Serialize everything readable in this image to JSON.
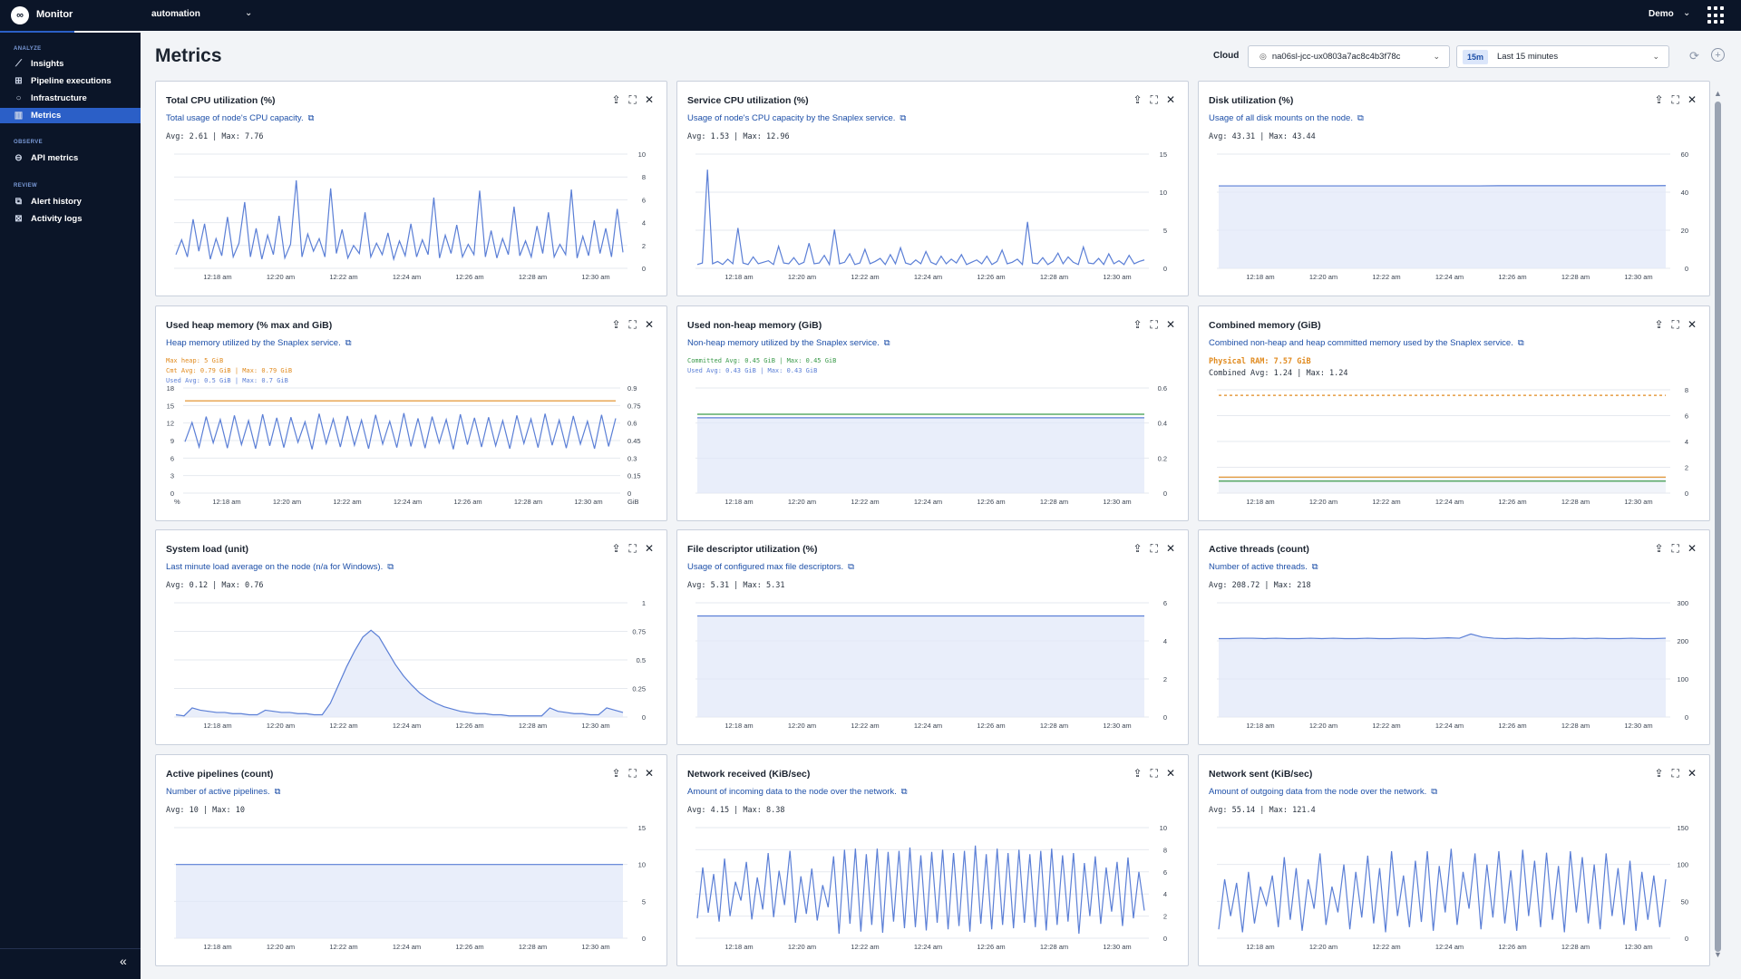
{
  "app": {
    "title": "Monitor",
    "org": "automation",
    "user": "Demo"
  },
  "sidebar": {
    "sections": [
      {
        "label": "ANALYZE",
        "items": [
          {
            "label": "Insights",
            "icon": "insights-icon"
          },
          {
            "label": "Pipeline executions",
            "icon": "pipeline-icon"
          },
          {
            "label": "Infrastructure",
            "icon": "infrastructure-icon"
          },
          {
            "label": "Metrics",
            "icon": "metrics-icon",
            "active": true
          }
        ]
      },
      {
        "label": "OBSERVE",
        "items": [
          {
            "label": "API metrics",
            "icon": "api-icon"
          }
        ]
      },
      {
        "label": "REVIEW",
        "items": [
          {
            "label": "Alert history",
            "icon": "alert-icon"
          },
          {
            "label": "Activity logs",
            "icon": "activity-icon"
          }
        ]
      }
    ]
  },
  "header": {
    "title": "Metrics",
    "cloud_label": "Cloud",
    "cloud_value": "na06sl-jcc-ux0803a7ac8c4b3f78c",
    "time_badge": "15m",
    "time_value": "Last 15 minutes"
  },
  "colors": {
    "accent": "#2b5fc7",
    "line": "#5b7fd6",
    "orange": "#e08a1e",
    "green": "#3a9a4a",
    "sidebar_bg": "#0b1528"
  },
  "x_ticks": [
    "12:18 am",
    "12:20 am",
    "12:22 am",
    "12:24 am",
    "12:26 am",
    "12:28 am",
    "12:30 am"
  ],
  "cards": [
    {
      "title": "Total CPU utilization (%)",
      "subtitle": "Total usage of node's CPU capacity.",
      "stats": [
        "Avg: 2.61 | Max: 7.76"
      ]
    },
    {
      "title": "Service CPU utilization (%)",
      "subtitle": "Usage of node's CPU capacity by the Snaplex service.",
      "stats": [
        "Avg: 1.53 | Max: 12.96"
      ]
    },
    {
      "title": "Disk utilization (%)",
      "subtitle": "Usage of all disk mounts on the node.",
      "stats": [
        "Avg: 43.31 | Max: 43.44"
      ]
    },
    {
      "title": "Used heap memory (% max and GiB)",
      "subtitle": "Heap memory utilized by the Snaplex service.",
      "stats": [
        "Max heap: 5 GiB",
        "Cmt Avg: 0.79 GiB | Max: 0.79 GiB",
        "Used Avg: 0.5 GiB | Max: 0.7 GiB"
      ]
    },
    {
      "title": "Used non-heap memory (GiB)",
      "subtitle": "Non-heap memory utilized by the Snaplex service.",
      "stats": [
        "Committed Avg: 0.45 GiB | Max: 0.45 GiB",
        "Used Avg: 0.43 GiB | Max: 0.43 GiB"
      ]
    },
    {
      "title": "Combined memory (GiB)",
      "subtitle": "Combined non-heap and heap committed memory used by the Snaplex service.",
      "stats": [
        "Physical RAM: 7.57 GiB",
        "Combined Avg: 1.24 | Max: 1.24"
      ]
    },
    {
      "title": "System load (unit)",
      "subtitle": "Last minute load average on the node (n/a for Windows).",
      "stats": [
        "Avg: 0.12 | Max: 0.76"
      ]
    },
    {
      "title": "File descriptor utilization (%)",
      "subtitle": "Usage of configured max file descriptors.",
      "stats": [
        "Avg: 5.31 | Max: 5.31"
      ]
    },
    {
      "title": "Active threads (count)",
      "subtitle": "Number of active threads.",
      "stats": [
        "Avg: 208.72 | Max: 218"
      ]
    },
    {
      "title": "Active pipelines (count)",
      "subtitle": "Number of active pipelines.",
      "stats": [
        "Avg: 10 | Max: 10"
      ]
    },
    {
      "title": "Network received (KiB/sec)",
      "subtitle": "Amount of incoming data to the node over the network.",
      "stats": [
        "Avg: 4.15 | Max: 8.38"
      ]
    },
    {
      "title": "Network sent (KiB/sec)",
      "subtitle": "Amount of outgoing data from the node over the network.",
      "stats": [
        "Avg: 55.14 | Max: 121.4"
      ]
    }
  ],
  "chart_data": [
    {
      "type": "line",
      "title": "Total CPU utilization (%)",
      "ylim": [
        0,
        10
      ],
      "yticks": [
        0,
        2,
        4,
        6,
        8,
        10
      ],
      "series": [
        {
          "values": [
            1.2,
            2.5,
            1.0,
            4.3,
            1.5,
            3.9,
            0.8,
            2.6,
            1.1,
            4.5,
            1.0,
            2.2,
            5.8,
            1.0,
            3.5,
            0.8,
            2.9,
            1.2,
            4.6,
            0.9,
            2.1,
            7.7,
            1.0,
            3.0,
            1.5,
            2.6,
            1.0,
            7.0,
            1.3,
            3.4,
            0.9,
            2.0,
            1.3,
            4.9,
            1.0,
            2.2,
            1.2,
            3.1,
            0.8,
            2.4,
            1.1,
            3.9,
            1.0,
            2.5,
            1.2,
            6.2,
            0.9,
            2.9,
            1.3,
            3.8,
            1.0,
            2.1,
            1.2,
            6.8,
            1.0,
            3.3,
            0.9,
            2.6,
            1.2,
            5.4,
            1.1,
            2.4,
            1.0,
            3.7,
            1.3,
            4.9,
            1.0,
            2.1,
            1.2,
            6.9,
            0.9,
            2.8,
            1.1,
            4.2,
            1.3,
            3.5,
            1.0,
            5.2,
            1.4
          ]
        }
      ]
    },
    {
      "type": "line",
      "title": "Service CPU utilization (%)",
      "ylim": [
        0,
        15
      ],
      "yticks": [
        0,
        5,
        10,
        15
      ],
      "series": [
        {
          "values": [
            0.5,
            0.7,
            12.96,
            0.6,
            0.9,
            0.5,
            1.2,
            0.6,
            5.3,
            0.7,
            0.5,
            1.5,
            0.6,
            0.8,
            1.0,
            0.5,
            2.9,
            0.7,
            0.6,
            1.4,
            0.5,
            0.8,
            3.3,
            0.6,
            0.7,
            1.7,
            0.5,
            5.1,
            0.6,
            0.8,
            1.9,
            0.5,
            0.7,
            2.5,
            0.6,
            0.9,
            1.3,
            0.5,
            1.8,
            0.6,
            2.7,
            0.7,
            0.5,
            1.1,
            0.6,
            2.2,
            0.8,
            0.5,
            1.6,
            0.6,
            1.2,
            0.7,
            1.8,
            0.5,
            0.8,
            1.1,
            0.6,
            1.6,
            0.5,
            0.9,
            2.4,
            0.6,
            0.8,
            1.2,
            0.5,
            6.1,
            0.7,
            0.6,
            1.4,
            0.5,
            0.9,
            2.0,
            0.6,
            1.5,
            0.8,
            0.5,
            2.8,
            0.7,
            0.6,
            1.3,
            0.5,
            1.9,
            0.6,
            1.0,
            0.5,
            1.7,
            0.6,
            0.9,
            1.1
          ]
        }
      ]
    },
    {
      "type": "area",
      "title": "Disk utilization (%)",
      "ylim": [
        0,
        60
      ],
      "yticks": [
        0,
        20,
        40,
        60
      ],
      "series": [
        {
          "values": [
            43.3,
            43.3,
            43.3,
            43.3,
            43.3,
            43.3,
            43.3,
            43.3,
            43.3,
            43.3,
            43.3,
            43.3,
            43.3,
            43.3,
            43.3,
            43.4,
            43.4,
            43.4,
            43.4,
            43.4,
            43.4,
            43.4,
            43.4,
            43.4,
            43.44
          ]
        }
      ]
    },
    {
      "type": "line",
      "title": "Used heap memory (% max and GiB)",
      "ylim": [
        0,
        18
      ],
      "yticks": [
        0,
        3,
        6,
        9,
        12,
        15,
        18
      ],
      "ylim_right": [
        0,
        0.9
      ],
      "yticks_right": [
        0,
        0.15,
        0.3,
        0.45,
        0.6,
        0.75,
        0.9
      ],
      "xunit": "%",
      "yunit_right": "GiB",
      "series": [
        {
          "name": "Cmt",
          "values": [
            15.8,
            15.8
          ]
        },
        {
          "name": "Used",
          "values": [
            8.8,
            12.1,
            7.9,
            13.1,
            8.6,
            12.6,
            7.7,
            13.3,
            8.3,
            12.4,
            7.6,
            13.5,
            8.1,
            12.9,
            7.8,
            13.0,
            8.7,
            12.2,
            7.5,
            13.6,
            8.5,
            12.7,
            7.9,
            13.2,
            8.2,
            12.5,
            7.6,
            13.4,
            8.4,
            12.3,
            7.8,
            13.7,
            8.0,
            12.8,
            7.7,
            13.1,
            8.6,
            12.6,
            7.5,
            13.5,
            8.3,
            12.9,
            7.9,
            13.0,
            8.1,
            12.4,
            7.6,
            13.3,
            8.5,
            12.7,
            7.8,
            13.6,
            8.2,
            12.5,
            7.7,
            13.2,
            8.4,
            12.3,
            7.6,
            13.4,
            8.0,
            12.8
          ]
        }
      ]
    },
    {
      "type": "area",
      "title": "Used non-heap memory (GiB)",
      "ylim": [
        0,
        0.6
      ],
      "yticks": [
        0,
        0.2,
        0.4,
        0.6
      ],
      "series": [
        {
          "name": "Committed",
          "values": [
            0.45,
            0.45
          ]
        },
        {
          "name": "Used",
          "values": [
            0.43,
            0.43
          ]
        }
      ]
    },
    {
      "type": "line",
      "title": "Combined memory (GiB)",
      "ylim": [
        0,
        8
      ],
      "yticks": [
        0,
        2,
        4,
        6,
        8
      ],
      "series": [
        {
          "name": "Physical RAM",
          "values": [
            7.57,
            7.57
          ]
        },
        {
          "name": "Combined committed",
          "values": [
            1.24,
            1.24
          ]
        },
        {
          "name": "Combined used",
          "values": [
            0.93,
            0.93
          ]
        }
      ]
    },
    {
      "type": "area",
      "title": "System load (unit)",
      "ylim": [
        0,
        1
      ],
      "yticks": [
        0,
        0.25,
        0.5,
        0.75,
        1
      ],
      "series": [
        {
          "values": [
            0.02,
            0.01,
            0.08,
            0.06,
            0.05,
            0.04,
            0.04,
            0.03,
            0.03,
            0.02,
            0.02,
            0.06,
            0.05,
            0.04,
            0.04,
            0.03,
            0.03,
            0.02,
            0.02,
            0.12,
            0.28,
            0.44,
            0.58,
            0.7,
            0.76,
            0.7,
            0.58,
            0.46,
            0.36,
            0.28,
            0.21,
            0.16,
            0.12,
            0.09,
            0.07,
            0.05,
            0.04,
            0.03,
            0.03,
            0.02,
            0.02,
            0.01,
            0.01,
            0.01,
            0.01,
            0.01,
            0.08,
            0.05,
            0.04,
            0.03,
            0.03,
            0.02,
            0.02,
            0.08,
            0.06,
            0.04
          ]
        }
      ]
    },
    {
      "type": "area",
      "title": "File descriptor utilization (%)",
      "ylim": [
        0,
        6
      ],
      "yticks": [
        0,
        2,
        4,
        6
      ],
      "series": [
        {
          "values": [
            5.31,
            5.31
          ]
        }
      ]
    },
    {
      "type": "area",
      "title": "Active threads (count)",
      "ylim": [
        0,
        300
      ],
      "yticks": [
        0,
        100,
        200,
        300
      ],
      "series": [
        {
          "values": [
            206,
            206,
            207,
            207,
            206,
            207,
            206,
            206,
            207,
            206,
            207,
            206,
            206,
            207,
            206,
            206,
            207,
            207,
            206,
            207,
            208,
            207,
            218,
            210,
            207,
            206,
            207,
            206,
            207,
            206,
            206,
            207,
            206,
            207,
            206,
            206,
            207,
            206,
            206,
            207
          ]
        }
      ]
    },
    {
      "type": "area",
      "title": "Active pipelines (count)",
      "ylim": [
        0,
        15
      ],
      "yticks": [
        0,
        5,
        10,
        15
      ],
      "series": [
        {
          "values": [
            10,
            10
          ]
        }
      ]
    },
    {
      "type": "line",
      "title": "Network received (KiB/sec)",
      "ylim": [
        0,
        10
      ],
      "yticks": [
        0,
        2,
        4,
        6,
        8,
        10
      ],
      "series": [
        {
          "values": [
            1.8,
            6.4,
            2.3,
            5.8,
            1.5,
            7.2,
            2.0,
            5.1,
            3.4,
            6.9,
            1.7,
            5.5,
            2.6,
            7.7,
            1.9,
            6.1,
            3.0,
            7.9,
            1.4,
            5.6,
            2.2,
            6.3,
            1.6,
            4.8,
            2.8,
            7.4,
            0.4,
            8.0,
            1.3,
            8.1,
            0.6,
            7.6,
            1.2,
            8.1,
            0.5,
            7.8,
            1.5,
            7.9,
            0.9,
            8.2,
            1.0,
            7.5,
            0.7,
            7.8,
            1.4,
            8.0,
            0.8,
            7.7,
            1.1,
            7.9,
            0.6,
            8.38,
            1.3,
            7.6,
            0.8,
            8.1,
            1.2,
            7.7,
            0.9,
            8.0,
            1.4,
            7.6,
            1.0,
            7.9,
            0.7,
            8.1,
            1.2,
            7.5,
            1.5,
            7.7,
            0.4,
            6.8,
            2.0,
            7.4,
            1.3,
            6.4,
            2.4,
            6.9,
            1.1,
            7.3,
            1.8,
            6.0,
            2.5
          ]
        }
      ]
    },
    {
      "type": "line",
      "title": "Network sent (KiB/sec)",
      "ylim": [
        0,
        150
      ],
      "yticks": [
        0,
        50,
        100,
        150
      ],
      "series": [
        {
          "values": [
            12,
            80,
            30,
            75,
            8,
            90,
            20,
            70,
            45,
            85,
            15,
            110,
            25,
            95,
            10,
            80,
            40,
            115,
            18,
            70,
            35,
            100,
            12,
            90,
            28,
            112,
            20,
            95,
            8,
            118,
            30,
            85,
            15,
            105,
            22,
            118,
            10,
            98,
            35,
            121.4,
            18,
            90,
            40,
            115,
            12,
            100,
            28,
            118,
            20,
            92,
            10,
            120,
            30,
            105,
            15,
            116,
            25,
            98,
            8,
            118,
            35,
            110,
            20,
            100,
            12,
            115,
            30,
            95,
            18,
            105,
            10,
            90,
            25,
            85,
            15,
            80
          ]
        }
      ]
    }
  ]
}
